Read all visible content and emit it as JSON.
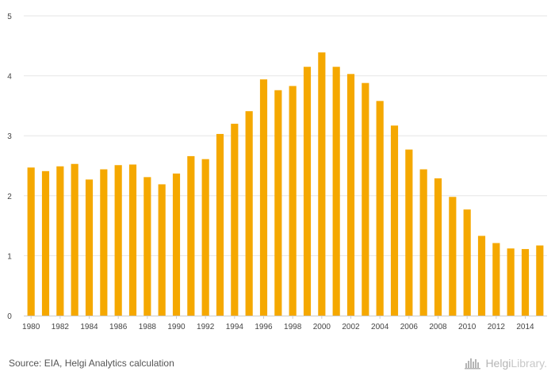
{
  "chart_data": {
    "type": "bar",
    "title": "",
    "xlabel": "",
    "ylabel": "",
    "ylim": [
      0,
      5
    ],
    "yticks": [
      "0",
      "1",
      "2",
      "3",
      "4",
      "5"
    ],
    "color": "#f5a800",
    "categories": [
      "1980",
      "1981",
      "1982",
      "1983",
      "1984",
      "1985",
      "1986",
      "1987",
      "1988",
      "1989",
      "1990",
      "1991",
      "1992",
      "1993",
      "1994",
      "1995",
      "1996",
      "1997",
      "1998",
      "1999",
      "2000",
      "2001",
      "2002",
      "2003",
      "2004",
      "2005",
      "2006",
      "2007",
      "2008",
      "2009",
      "2010",
      "2011",
      "2012",
      "2013",
      "2014",
      "2015"
    ],
    "x_tick_labels": [
      "1980",
      "",
      "1982",
      "",
      "1984",
      "",
      "1986",
      "",
      "1988",
      "",
      "1990",
      "",
      "1992",
      "",
      "1994",
      "",
      "1996",
      "",
      "1998",
      "",
      "2000",
      "",
      "2002",
      "",
      "2004",
      "",
      "2006",
      "",
      "2008",
      "",
      "2010",
      "",
      "2012",
      "",
      "2014",
      ""
    ],
    "values": [
      2.47,
      2.41,
      2.49,
      2.53,
      2.27,
      2.44,
      2.51,
      2.52,
      2.31,
      2.19,
      2.37,
      2.66,
      2.61,
      3.03,
      3.2,
      3.41,
      3.94,
      3.76,
      3.83,
      4.15,
      4.39,
      4.15,
      4.03,
      3.88,
      3.58,
      3.17,
      2.77,
      2.44,
      2.29,
      1.98,
      1.77,
      1.33,
      1.21,
      1.12,
      1.11,
      1.17
    ],
    "grid": true
  },
  "footer": {
    "source": "Source: EIA, Helgi Analytics calculation",
    "brand_part1": "Helgi",
    "brand_part2": "Library."
  },
  "icons": {
    "brand": "helgi-library-logo-icon"
  }
}
